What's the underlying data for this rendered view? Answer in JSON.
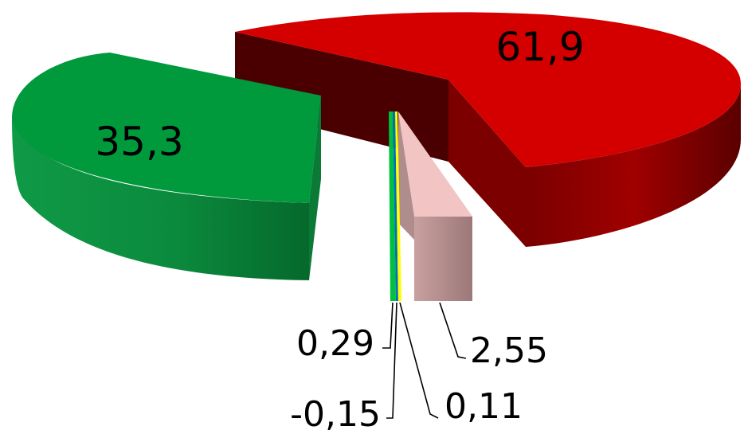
{
  "chart_data": {
    "type": "pie",
    "style": "3d-exploded",
    "title": "",
    "slices": [
      {
        "label": "61,9",
        "value": 61.9,
        "color": "#d40000",
        "side_color": "#5e0000"
      },
      {
        "label": "2,55",
        "value": 2.55,
        "color": "#f2c4c4",
        "side_color": "#a88484"
      },
      {
        "label": "0,11",
        "value": 0.11,
        "color": "#ffff00",
        "side_color": "#b5b500"
      },
      {
        "label": "-0,15",
        "value": -0.15,
        "color": "#0070c0",
        "side_color": "#004a80"
      },
      {
        "label": "0,29",
        "value": 0.29,
        "color": "#00c040",
        "side_color": "#008a2e"
      },
      {
        "label": "35,3",
        "value": 35.3,
        "color": "#009a3c",
        "side_color": "#006b2a"
      }
    ]
  }
}
